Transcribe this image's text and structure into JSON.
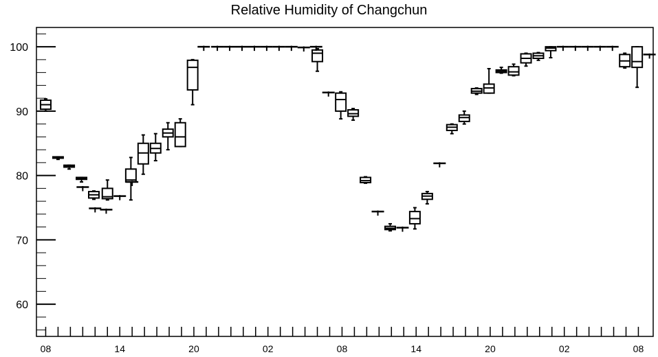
{
  "chart_data": {
    "type": "box",
    "title": "Relative Humidity of Changchun",
    "xlabel": "",
    "ylabel": "",
    "ylim": [
      55,
      103
    ],
    "yticks": [
      60,
      70,
      80,
      90,
      100
    ],
    "xlim": [
      0,
      48
    ],
    "xticks": [
      {
        "x": 0,
        "label": "08"
      },
      {
        "x": 6,
        "label": "14"
      },
      {
        "x": 12,
        "label": "20"
      },
      {
        "x": 18,
        "label": "02"
      },
      {
        "x": 24,
        "label": "08"
      },
      {
        "x": 30,
        "label": "14"
      },
      {
        "x": 36,
        "label": "20"
      },
      {
        "x": 42,
        "label": "02"
      },
      {
        "x": 48,
        "label": "08"
      }
    ],
    "grid": false,
    "boxes": [
      {
        "x": 0.0,
        "min": 90.0,
        "q1": 90.3,
        "median": 91.0,
        "q3": 91.7,
        "max": 91.9
      },
      {
        "x": 1.0,
        "min": 82.5,
        "q1": 82.7,
        "median": 82.8,
        "q3": 82.9,
        "max": 82.9
      },
      {
        "x": 1.9,
        "min": 81.0,
        "q1": 81.3,
        "median": 81.4,
        "q3": 81.6,
        "max": 81.6
      },
      {
        "x": 2.9,
        "min": 79.0,
        "q1": 79.4,
        "median": 79.5,
        "q3": 79.7,
        "max": 79.7
      },
      {
        "x": 3.9,
        "min": 76.3,
        "q1": 76.5,
        "median": 77.0,
        "q3": 77.5,
        "max": 77.6
      },
      {
        "x": 5.0,
        "min": 76.2,
        "q1": 76.4,
        "median": 76.7,
        "q3": 78.0,
        "max": 79.3
      },
      {
        "x": 6.9,
        "min": 76.2,
        "q1": 79.0,
        "median": 79.3,
        "q3": 81.0,
        "max": 82.8
      },
      {
        "x": 7.9,
        "min": 80.2,
        "q1": 81.8,
        "median": 83.5,
        "q3": 85.0,
        "max": 86.3
      },
      {
        "x": 8.9,
        "min": 82.3,
        "q1": 83.5,
        "median": 84.2,
        "q3": 85.0,
        "max": 86.5
      },
      {
        "x": 9.9,
        "min": 84.0,
        "q1": 86.0,
        "median": 86.6,
        "q3": 87.2,
        "max": 88.2
      },
      {
        "x": 10.9,
        "min": 84.5,
        "q1": 84.5,
        "median": 86.0,
        "q3": 88.2,
        "max": 88.8
      },
      {
        "x": 11.9,
        "min": 91.0,
        "q1": 93.3,
        "median": 96.8,
        "q3": 97.9,
        "max": 98.0
      },
      {
        "x": 22.0,
        "min": 96.2,
        "q1": 97.7,
        "median": 99.0,
        "q3": 99.5,
        "max": 99.7
      },
      {
        "x": 23.9,
        "min": 88.8,
        "q1": 90.0,
        "median": 91.8,
        "q3": 92.8,
        "max": 93.0
      },
      {
        "x": 24.9,
        "min": 88.6,
        "q1": 89.2,
        "median": 89.6,
        "q3": 90.2,
        "max": 90.4
      },
      {
        "x": 25.9,
        "min": 78.8,
        "q1": 78.9,
        "median": 79.2,
        "q3": 79.7,
        "max": 79.8
      },
      {
        "x": 27.9,
        "min": 71.4,
        "q1": 71.6,
        "median": 71.8,
        "q3": 72.1,
        "max": 72.5
      },
      {
        "x": 29.9,
        "min": 71.7,
        "q1": 72.5,
        "median": 73.3,
        "q3": 74.4,
        "max": 75.0
      },
      {
        "x": 30.9,
        "min": 75.6,
        "q1": 76.3,
        "median": 76.8,
        "q3": 77.2,
        "max": 77.5
      },
      {
        "x": 32.9,
        "min": 86.5,
        "q1": 87.0,
        "median": 87.5,
        "q3": 87.9,
        "max": 88.0
      },
      {
        "x": 33.9,
        "min": 88.0,
        "q1": 88.4,
        "median": 89.0,
        "q3": 89.4,
        "max": 90.0
      },
      {
        "x": 34.9,
        "min": 92.6,
        "q1": 92.8,
        "median": 93.1,
        "q3": 93.5,
        "max": 93.6
      },
      {
        "x": 35.9,
        "min": 92.8,
        "q1": 92.8,
        "median": 93.6,
        "q3": 94.2,
        "max": 96.6
      },
      {
        "x": 36.9,
        "min": 95.9,
        "q1": 96.0,
        "median": 96.2,
        "q3": 96.4,
        "max": 96.8
      },
      {
        "x": 37.9,
        "min": 95.5,
        "q1": 95.6,
        "median": 96.1,
        "q3": 96.9,
        "max": 97.3
      },
      {
        "x": 38.9,
        "min": 97.0,
        "q1": 97.5,
        "median": 98.2,
        "q3": 98.9,
        "max": 99.0
      },
      {
        "x": 39.9,
        "min": 97.9,
        "q1": 98.2,
        "median": 98.6,
        "q3": 99.0,
        "max": 99.1
      },
      {
        "x": 40.9,
        "min": 98.3,
        "q1": 99.4,
        "median": 99.8,
        "q3": 100.0,
        "max": 100.0
      },
      {
        "x": 46.9,
        "min": 96.7,
        "q1": 96.9,
        "median": 97.8,
        "q3": 98.8,
        "max": 99.0
      },
      {
        "x": 47.9,
        "min": 93.7,
        "q1": 96.8,
        "median": 97.7,
        "q3": 100.0,
        "max": 100.0
      }
    ],
    "flat_marks": [
      {
        "x": 3.0,
        "value": 78.2
      },
      {
        "x": 4.0,
        "value": 74.9
      },
      {
        "x": 4.9,
        "value": 74.7
      },
      {
        "x": 6.0,
        "value": 76.8
      },
      {
        "x": 7.0,
        "value": 79.0
      },
      {
        "x": 12.8,
        "value": 100.0
      },
      {
        "x": 13.9,
        "value": 100.0
      },
      {
        "x": 14.9,
        "value": 100.0
      },
      {
        "x": 15.9,
        "value": 100.0
      },
      {
        "x": 16.9,
        "value": 100.0
      },
      {
        "x": 17.9,
        "value": 100.0
      },
      {
        "x": 18.9,
        "value": 100.0
      },
      {
        "x": 19.9,
        "value": 100.0
      },
      {
        "x": 20.9,
        "value": 99.9
      },
      {
        "x": 21.9,
        "value": 100.0
      },
      {
        "x": 22.9,
        "value": 92.9
      },
      {
        "x": 26.9,
        "value": 74.4
      },
      {
        "x": 28.9,
        "value": 71.9
      },
      {
        "x": 31.9,
        "value": 81.9
      },
      {
        "x": 41.9,
        "value": 100.0
      },
      {
        "x": 42.9,
        "value": 100.0
      },
      {
        "x": 43.9,
        "value": 100.0
      },
      {
        "x": 44.9,
        "value": 100.0
      },
      {
        "x": 45.9,
        "value": 100.0
      },
      {
        "x": 48.9,
        "value": 98.8
      }
    ]
  }
}
